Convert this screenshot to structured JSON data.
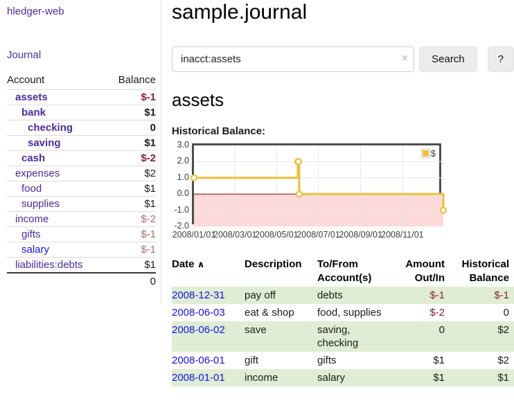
{
  "colors": {
    "link_visited": "#4c2ba0",
    "link": "#1512e6",
    "negative": "#8c1e2d",
    "negative_muted": "#b06c6c",
    "row_stripe_green": "#dfedd5",
    "chart_line_yellow": "#edc240"
  },
  "sidebar": {
    "app_title": "hledger-web",
    "nav_journal": "Journal",
    "account_header": "Account",
    "balance_header": "Balance",
    "rows": [
      {
        "name": "assets",
        "balance": "$-1",
        "indent": 1,
        "bold": true,
        "balance_class": "neg-strong"
      },
      {
        "name": "bank",
        "balance": "$1",
        "indent": 2,
        "bold": true,
        "balance_class": ""
      },
      {
        "name": "checking",
        "balance": "0",
        "indent": 3,
        "bold": true,
        "balance_class": ""
      },
      {
        "name": "saving",
        "balance": "$1",
        "indent": 3,
        "bold": true,
        "balance_class": ""
      },
      {
        "name": "cash",
        "balance": "$-2",
        "indent": 2,
        "bold": true,
        "balance_class": "neg-strong"
      },
      {
        "name": "expenses",
        "balance": "$2",
        "indent": 1,
        "bold": false,
        "balance_class": ""
      },
      {
        "name": "food",
        "balance": "$1",
        "indent": 2,
        "bold": false,
        "balance_class": ""
      },
      {
        "name": "supplies",
        "balance": "$1",
        "indent": 2,
        "bold": false,
        "balance_class": ""
      },
      {
        "name": "income",
        "balance": "$-2",
        "indent": 1,
        "bold": false,
        "balance_class": "neg-muted"
      },
      {
        "name": "gifts",
        "balance": "$-1",
        "indent": 2,
        "bold": false,
        "balance_class": "neg-muted"
      },
      {
        "name": "salary",
        "balance": "$-1",
        "indent": 2,
        "bold": false,
        "balance_class": "neg-muted",
        "link": "unvisited"
      },
      {
        "name": "liabilities:debts",
        "balance": "$1",
        "indent": 1,
        "bold": false,
        "balance_class": ""
      }
    ],
    "total": "0"
  },
  "main": {
    "title": "sample.journal",
    "search": {
      "value": "inacct:assets",
      "clear_icon": "×",
      "button_label": "Search",
      "help_label": "?"
    },
    "account_heading": "assets",
    "register": {
      "headers": [
        "Date",
        "Description",
        "To/From Account(s)",
        "Amount Out/In",
        "Historical Balance"
      ],
      "sort_icon": "∧",
      "rows": [
        {
          "date": "2008-12-31",
          "description": "pay off",
          "accounts": "debts",
          "amount": "$-1",
          "amount_negative": true,
          "balance": "$-1",
          "balance_negative": true
        },
        {
          "date": "2008-06-03",
          "description": "eat & shop",
          "accounts": "food, supplies",
          "amount": "$-2",
          "amount_negative": true,
          "balance": "0",
          "balance_negative": false
        },
        {
          "date": "2008-06-02",
          "description": "save",
          "accounts": "saving, checking",
          "amount": "0",
          "amount_negative": false,
          "balance": "$2",
          "balance_negative": false
        },
        {
          "date": "2008-06-01",
          "description": "gift",
          "accounts": "gifts",
          "amount": "$1",
          "amount_negative": false,
          "balance": "$2",
          "balance_negative": false
        },
        {
          "date": "2008-01-01",
          "description": "income",
          "accounts": "salary",
          "amount": "$1",
          "amount_negative": false,
          "balance": "$1",
          "balance_negative": false
        }
      ]
    }
  },
  "chart_data": {
    "type": "line",
    "title": "Historical Balance:",
    "line_style": "steps",
    "series": [
      {
        "name": "$",
        "color": "#edc240",
        "points": [
          [
            "2008-01-01",
            1
          ],
          [
            "2008-06-01",
            2
          ],
          [
            "2008-06-02",
            2
          ],
          [
            "2008-06-03",
            0
          ],
          [
            "2008-12-31",
            -1
          ]
        ]
      }
    ],
    "legend": [
      {
        "label": "$",
        "color": "#edc240"
      }
    ],
    "legend_position": "top-right",
    "xlim": [
      "2008-01-01",
      "2008-12-31"
    ],
    "ylim": [
      -2,
      3
    ],
    "xticks": [
      "2008/01/01",
      "2008/03/01",
      "2008/05/01",
      "2008/07/01",
      "2008/09/01",
      "2008/11/01"
    ],
    "yticks": [
      "3.0",
      "2.0",
      "1.0",
      "0.0",
      "-1.0",
      "-2.0"
    ],
    "grid": true,
    "negative_fill": "#fcdada",
    "zero_line_color": "#8b0000"
  }
}
